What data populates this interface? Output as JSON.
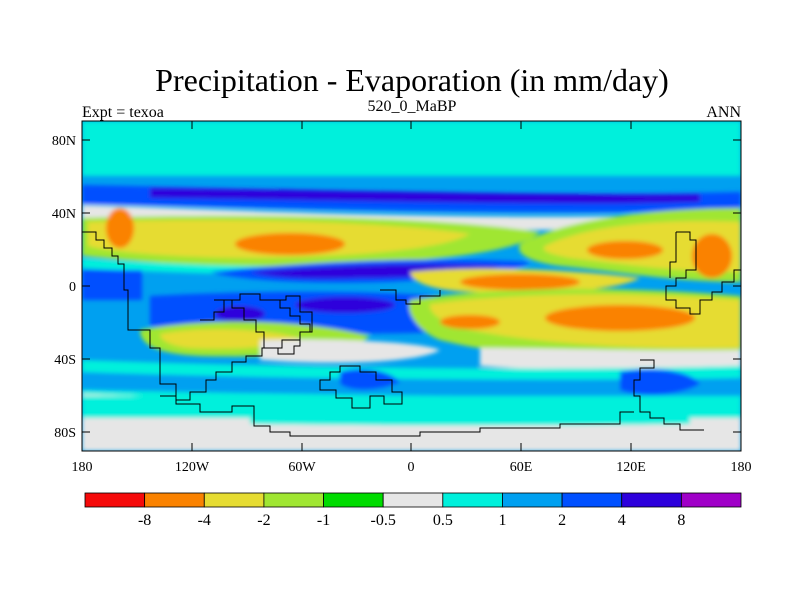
{
  "title": "Precipitation - Evaporation (in mm/day)",
  "left_label": "Expt = texoa",
  "center_label": "520_0_MaBP",
  "right_label": "ANN",
  "y_ticks": [
    "80N",
    "40N",
    "0",
    "40S",
    "80S"
  ],
  "x_ticks": [
    "180",
    "120W",
    "60W",
    "0",
    "60E",
    "120E",
    "180"
  ],
  "colorbar": {
    "colors": [
      "#f50a0a",
      "#fa8200",
      "#e6dc32",
      "#a0e632",
      "#00dc00",
      "#e6e6e6",
      "#00f0dc",
      "#00a0f0",
      "#0050ff",
      "#2d00dc",
      "#a000c8"
    ],
    "labels": [
      "-8",
      "-4",
      "-2",
      "-1",
      "-0.5",
      "0.5",
      "1",
      "2",
      "4",
      "8"
    ]
  },
  "chart_data": {
    "type": "heatmap",
    "title": "Precipitation - Evaporation (in mm/day)",
    "subtitle": "520_0_MaBP",
    "xlabel": "",
    "ylabel": "",
    "xlim": [
      -180,
      180
    ],
    "ylim": [
      -90,
      90
    ],
    "levels": [
      -8,
      -4,
      -2,
      -1,
      -0.5,
      0.5,
      1,
      2,
      4,
      8
    ]
  }
}
